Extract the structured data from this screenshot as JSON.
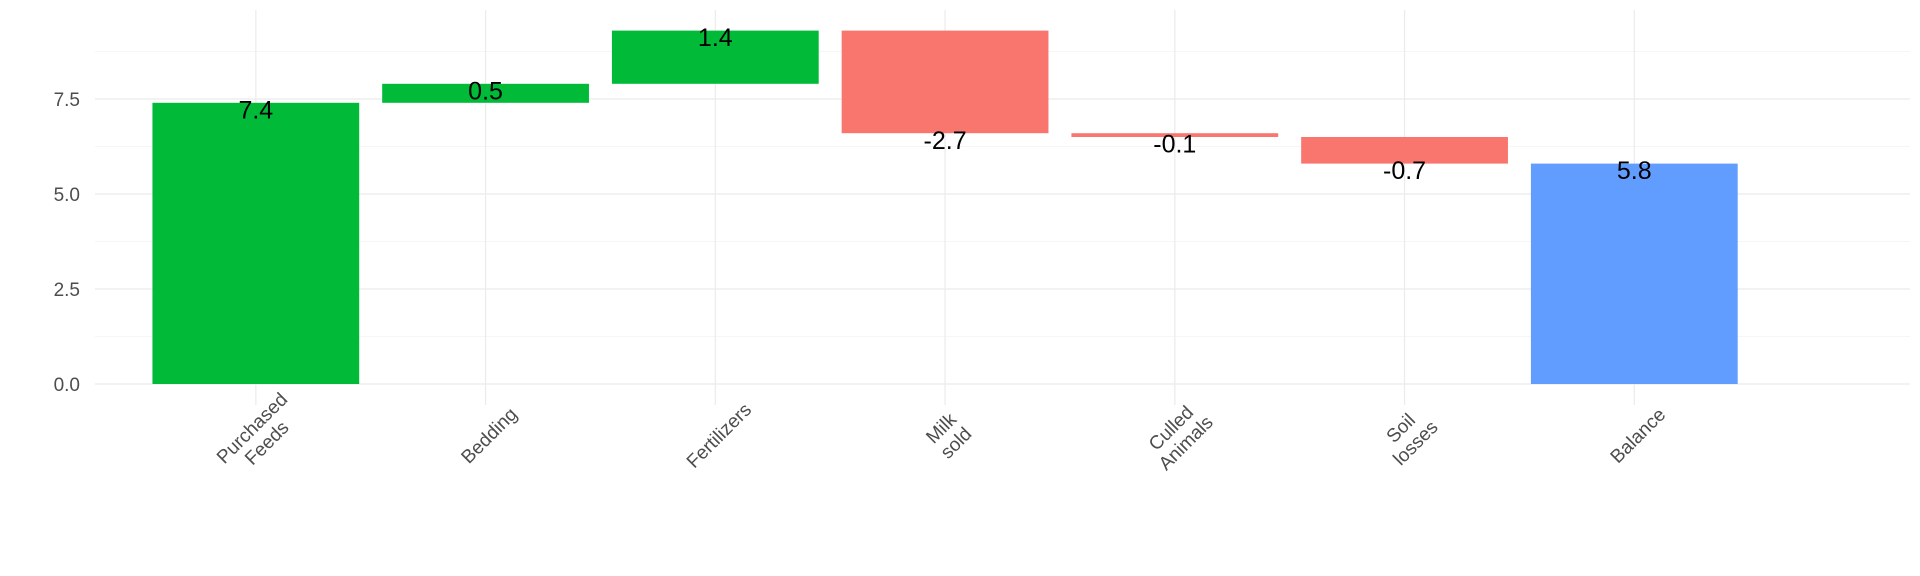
{
  "chart_data": {
    "type": "waterfall",
    "categories": [
      [
        "Purchased",
        "Feeds"
      ],
      [
        "Bedding"
      ],
      [
        "Fertilizers"
      ],
      [
        "Milk",
        "sold"
      ],
      [
        "Culled",
        "Animals"
      ],
      [
        "Soil",
        "losses"
      ],
      [
        "Balance"
      ]
    ],
    "values": [
      7.4,
      0.5,
      1.4,
      -2.7,
      -0.1,
      -0.7,
      5.8
    ],
    "labels": [
      "7.4",
      "0.5",
      "1.4",
      "-2.7",
      "-0.1",
      "-0.7",
      "5.8"
    ],
    "bar_kinds": [
      "positive",
      "positive",
      "positive",
      "negative",
      "negative",
      "negative",
      "total"
    ],
    "colors": {
      "positive": "#00BA38",
      "negative": "#F8766D",
      "total": "#619CFF"
    },
    "ylim": [
      -0.2,
      9.7
    ],
    "yticks": [
      0.0,
      2.5,
      5.0,
      7.5
    ],
    "ytick_labels": [
      "0.0",
      "2.5",
      "5.0",
      "7.5"
    ],
    "grid": true,
    "title": "",
    "xlabel": "",
    "ylabel": ""
  }
}
